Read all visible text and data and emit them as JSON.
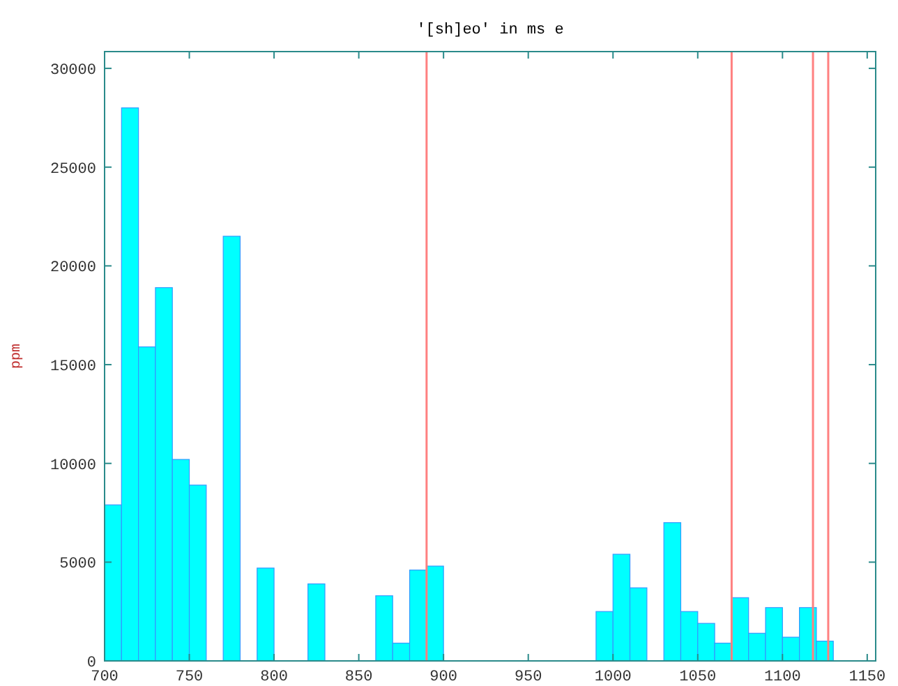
{
  "chart_data": {
    "type": "histogram",
    "title": "'[sh]eo' in ms e",
    "ylabel": "ppm",
    "bins": [
      700,
      710,
      720,
      730,
      740,
      750,
      760,
      770,
      780,
      790,
      800,
      810,
      820,
      830,
      840,
      850,
      860,
      870,
      880,
      890,
      900,
      910,
      920,
      930,
      940,
      950,
      960,
      970,
      980,
      990,
      1000,
      1010,
      1020,
      1030,
      1040,
      1050,
      1060,
      1070,
      1080,
      1090,
      1100,
      1110,
      1120,
      1130
    ],
    "values": [
      7900,
      28000,
      15900,
      18900,
      10200,
      8900,
      0,
      21500,
      0,
      4700,
      0,
      0,
      3900,
      0,
      0,
      0,
      3300,
      900,
      4600,
      4800,
      0,
      0,
      0,
      0,
      0,
      0,
      0,
      0,
      0,
      2500,
      5400,
      3700,
      0,
      7000,
      2500,
      1900,
      900,
      3200,
      1400,
      2700,
      1200,
      2700,
      1000
    ],
    "color": "#00ffff",
    "xlim": [
      700,
      1155
    ],
    "xticks": [
      700,
      750,
      800,
      850,
      900,
      950,
      1000,
      1050,
      1100,
      1150
    ],
    "ylim": [
      0,
      30850
    ],
    "yticks": [
      0,
      5000,
      10000,
      15000,
      20000,
      25000,
      30000
    ],
    "ref_lines": [
      {
        "axis": "x",
        "value": 890,
        "color": "#ff8080"
      },
      {
        "axis": "x",
        "value": 1070,
        "color": "#ff8080"
      },
      {
        "axis": "x",
        "value": 1118,
        "color": "#ff8080"
      },
      {
        "axis": "x",
        "value": 1127,
        "color": "#ff8080"
      }
    ],
    "grid": false
  }
}
